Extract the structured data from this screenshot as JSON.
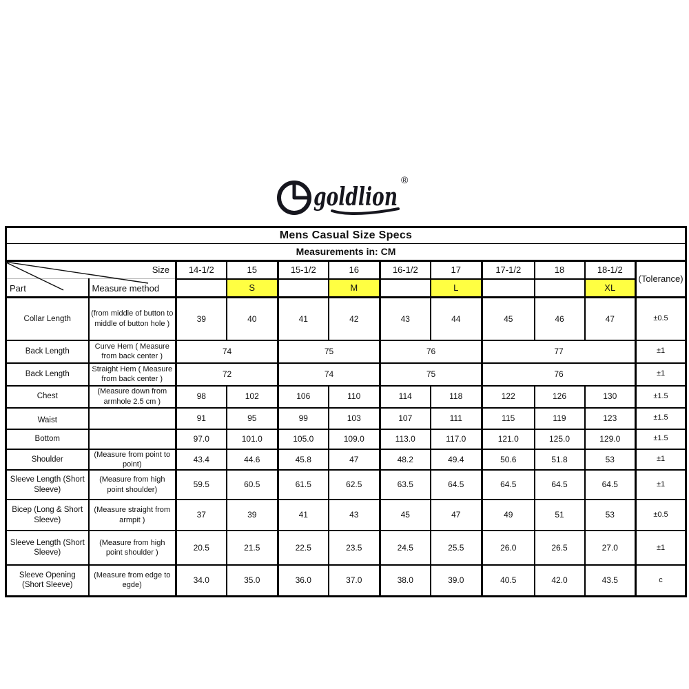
{
  "logo": {
    "brand": "goldlion",
    "registered_mark": "®",
    "color": "#16161e"
  },
  "table": {
    "title": "Mens Casual Size Specs",
    "subtitle": "Measurements in: CM",
    "corner": {
      "size_label": "Size",
      "part_label": "Part",
      "measure_method_label": "Measure method"
    },
    "tolerance_header": "(Tolerance)",
    "highlight_color": "#ffff42",
    "size_columns": [
      {
        "size": "14-1/2",
        "letter": ""
      },
      {
        "size": "15",
        "letter": "S"
      },
      {
        "size": "15-1/2",
        "letter": ""
      },
      {
        "size": "16",
        "letter": "M"
      },
      {
        "size": "16-1/2",
        "letter": ""
      },
      {
        "size": "17",
        "letter": "L"
      },
      {
        "size": "17-1/2",
        "letter": ""
      },
      {
        "size": "18",
        "letter": ""
      },
      {
        "size": "18-1/2",
        "letter": "XL"
      }
    ],
    "rows": [
      {
        "part": "Collar Length",
        "method": "(from middle of button to middle of button hole )",
        "cells": [
          {
            "v": "39",
            "span": 1
          },
          {
            "v": "40",
            "span": 1
          },
          {
            "v": "41",
            "span": 1
          },
          {
            "v": "42",
            "span": 1
          },
          {
            "v": "43",
            "span": 1
          },
          {
            "v": "44",
            "span": 1
          },
          {
            "v": "45",
            "span": 1
          },
          {
            "v": "46",
            "span": 1
          },
          {
            "v": "47",
            "span": 1
          }
        ],
        "tolerance": "±0.5"
      },
      {
        "part": "Back Length",
        "method": "Curve Hem ( Measure from back center )",
        "cells": [
          {
            "v": "74",
            "span": 2
          },
          {
            "v": "75",
            "span": 2
          },
          {
            "v": "76",
            "span": 2
          },
          {
            "v": "77",
            "span": 3
          }
        ],
        "tolerance": "±1"
      },
      {
        "part": "Back Length",
        "method": "Straight Hem ( Measure from back center )",
        "cells": [
          {
            "v": "72",
            "span": 2
          },
          {
            "v": "74",
            "span": 2
          },
          {
            "v": "75",
            "span": 2
          },
          {
            "v": "76",
            "span": 3
          }
        ],
        "tolerance": "±1"
      },
      {
        "part": "Chest",
        "method": "(Measure down from armhole 2.5 cm )",
        "cells": [
          {
            "v": "98",
            "span": 1
          },
          {
            "v": "102",
            "span": 1
          },
          {
            "v": "106",
            "span": 1
          },
          {
            "v": "110",
            "span": 1
          },
          {
            "v": "114",
            "span": 1
          },
          {
            "v": "118",
            "span": 1
          },
          {
            "v": "122",
            "span": 1
          },
          {
            "v": "126",
            "span": 1
          },
          {
            "v": "130",
            "span": 1
          }
        ],
        "tolerance": "±1.5"
      },
      {
        "part": "Waist",
        "method": "",
        "cells": [
          {
            "v": "91",
            "span": 1
          },
          {
            "v": "95",
            "span": 1
          },
          {
            "v": "99",
            "span": 1
          },
          {
            "v": "103",
            "span": 1
          },
          {
            "v": "107",
            "span": 1
          },
          {
            "v": "111",
            "span": 1
          },
          {
            "v": "115",
            "span": 1
          },
          {
            "v": "119",
            "span": 1
          },
          {
            "v": "123",
            "span": 1
          }
        ],
        "tolerance": "±1.5"
      },
      {
        "part": "Bottom",
        "method": "",
        "cells": [
          {
            "v": "97.0",
            "span": 1
          },
          {
            "v": "101.0",
            "span": 1
          },
          {
            "v": "105.0",
            "span": 1
          },
          {
            "v": "109.0",
            "span": 1
          },
          {
            "v": "113.0",
            "span": 1
          },
          {
            "v": "117.0",
            "span": 1
          },
          {
            "v": "121.0",
            "span": 1
          },
          {
            "v": "125.0",
            "span": 1
          },
          {
            "v": "129.0",
            "span": 1
          }
        ],
        "tolerance": "±1.5"
      },
      {
        "part": "Shoulder",
        "method": "(Measure from point to point)",
        "cells": [
          {
            "v": "43.4",
            "span": 1
          },
          {
            "v": "44.6",
            "span": 1
          },
          {
            "v": "45.8",
            "span": 1
          },
          {
            "v": "47",
            "span": 1
          },
          {
            "v": "48.2",
            "span": 1
          },
          {
            "v": "49.4",
            "span": 1
          },
          {
            "v": "50.6",
            "span": 1
          },
          {
            "v": "51.8",
            "span": 1
          },
          {
            "v": "53",
            "span": 1
          }
        ],
        "tolerance": "±1"
      },
      {
        "part": "Sleeve Length (Short Sleeve)",
        "method": "(Measure from high point shoulder)",
        "cells": [
          {
            "v": "59.5",
            "span": 1
          },
          {
            "v": "60.5",
            "span": 1
          },
          {
            "v": "61.5",
            "span": 1
          },
          {
            "v": "62.5",
            "span": 1
          },
          {
            "v": "63.5",
            "span": 1
          },
          {
            "v": "64.5",
            "span": 1
          },
          {
            "v": "64.5",
            "span": 1
          },
          {
            "v": "64.5",
            "span": 1
          },
          {
            "v": "64.5",
            "span": 1
          }
        ],
        "tolerance": "±1"
      },
      {
        "part": "Bicep (Long & Short Sleeve)",
        "method": "(Measure straight from armpit )",
        "cells": [
          {
            "v": "37",
            "span": 1
          },
          {
            "v": "39",
            "span": 1
          },
          {
            "v": "41",
            "span": 1
          },
          {
            "v": "43",
            "span": 1
          },
          {
            "v": "45",
            "span": 1
          },
          {
            "v": "47",
            "span": 1
          },
          {
            "v": "49",
            "span": 1
          },
          {
            "v": "51",
            "span": 1
          },
          {
            "v": "53",
            "span": 1
          }
        ],
        "tolerance": "±0.5"
      },
      {
        "part": "Sleeve Length (Short Sleeve)",
        "method": "(Measure from high point shoulder )",
        "cells": [
          {
            "v": "20.5",
            "span": 1
          },
          {
            "v": "21.5",
            "span": 1
          },
          {
            "v": "22.5",
            "span": 1
          },
          {
            "v": "23.5",
            "span": 1
          },
          {
            "v": "24.5",
            "span": 1
          },
          {
            "v": "25.5",
            "span": 1
          },
          {
            "v": "26.0",
            "span": 1
          },
          {
            "v": "26.5",
            "span": 1
          },
          {
            "v": "27.0",
            "span": 1
          }
        ],
        "tolerance": "±1"
      },
      {
        "part": "Sleeve Opening (Short Sleeve)",
        "method": "(Measure from edge to egde)",
        "cells": [
          {
            "v": "34.0",
            "span": 1
          },
          {
            "v": "35.0",
            "span": 1
          },
          {
            "v": "36.0",
            "span": 1
          },
          {
            "v": "37.0",
            "span": 1
          },
          {
            "v": "38.0",
            "span": 1
          },
          {
            "v": "39.0",
            "span": 1
          },
          {
            "v": "40.5",
            "span": 1
          },
          {
            "v": "42.0",
            "span": 1
          },
          {
            "v": "43.5",
            "span": 1
          }
        ],
        "tolerance": "c"
      }
    ]
  }
}
